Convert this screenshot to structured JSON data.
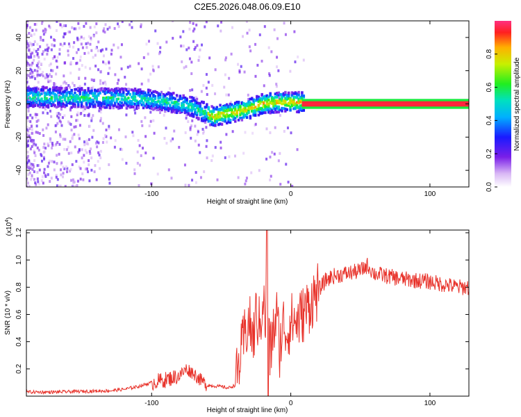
{
  "chart_data": [
    {
      "type": "heatmap",
      "title": "C2E5.2026.048.06.09.E10",
      "xlabel": "Height of straight line (km)",
      "ylabel": "Frequency (Hz)",
      "xlim": [
        -190,
        128
      ],
      "ylim": [
        -50,
        50
      ],
      "xticks": [
        -100,
        0,
        100
      ],
      "yticks": [
        40,
        20,
        0,
        -20,
        -40
      ],
      "colorbar": {
        "label": "Normalized spectral amplitude",
        "range": [
          0,
          1
        ],
        "ticks": [
          0.0,
          0.2,
          0.4,
          0.6,
          0.8
        ]
      },
      "ridge": {
        "x": [
          -190,
          -170,
          -150,
          -130,
          -110,
          -95,
          -80,
          -70,
          -60,
          -55,
          -48,
          -40,
          -30,
          -20,
          -10,
          0,
          10,
          128
        ],
        "y": [
          4,
          4,
          3.5,
          3.5,
          3,
          2,
          0,
          -2,
          -6,
          -8,
          -6,
          -5,
          -3,
          0,
          1,
          1,
          1,
          1
        ]
      }
    },
    {
      "type": "line",
      "xlabel": "Height of straight line (km)",
      "ylabel": "SNR (10 * v/v)",
      "yscale_label": "(x10",
      "yscale_exp": "4",
      "xlim": [
        -190,
        128
      ],
      "ylim": [
        0,
        1.22
      ],
      "xticks": [
        -100,
        0,
        100
      ],
      "yticks": [
        0.2,
        0.4,
        0.6,
        0.8,
        1.0,
        1.2
      ],
      "series": [
        {
          "name": "SNR",
          "color": "#e8322a",
          "x": [
            -190,
            -170,
            -150,
            -130,
            -120,
            -110,
            -100,
            -90,
            -80,
            -75,
            -70,
            -65,
            -60,
            -50,
            -45,
            -40,
            -36,
            -33,
            -30,
            -27,
            -25,
            -22,
            -20,
            -18,
            -17,
            -16,
            -15,
            -13,
            -10,
            -8,
            -5,
            -3,
            0,
            5,
            10,
            15,
            20,
            25,
            30,
            40,
            50,
            55,
            60,
            70,
            80,
            90,
            100,
            110,
            120,
            128
          ],
          "y": [
            0.03,
            0.03,
            0.035,
            0.04,
            0.05,
            0.07,
            0.1,
            0.12,
            0.15,
            0.2,
            0.17,
            0.12,
            0.08,
            0.07,
            0.06,
            0.08,
            0.3,
            0.45,
            0.55,
            0.4,
            0.6,
            0.5,
            0.75,
            0.5,
            1.1,
            0.6,
            0.3,
            0.45,
            0.6,
            0.35,
            0.55,
            0.45,
            0.55,
            0.55,
            0.62,
            0.7,
            0.78,
            0.85,
            0.88,
            0.9,
            0.92,
            0.96,
            0.9,
            0.88,
            0.86,
            0.85,
            0.84,
            0.82,
            0.8,
            0.8
          ]
        }
      ]
    }
  ]
}
